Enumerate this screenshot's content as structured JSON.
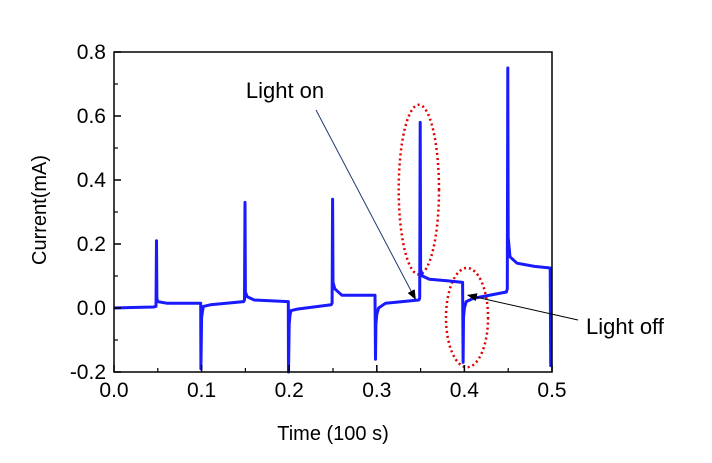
{
  "chart_data": {
    "type": "line",
    "xlabel": "Time (100 s)",
    "ylabel": "Current(mA)",
    "xlim": [
      0.0,
      0.5
    ],
    "ylim": [
      -0.2,
      0.8
    ],
    "xticks": [
      "0.0",
      "0.1",
      "0.2",
      "0.3",
      "0.4",
      "0.5"
    ],
    "yticks": [
      "-0.2",
      "0.0",
      "0.2",
      "0.4",
      "0.6",
      "0.8"
    ],
    "grid": false,
    "legend": "none",
    "series": [
      {
        "color": "#1a1aff",
        "x": [
          0.0,
          0.045,
          0.048,
          0.0485,
          0.049,
          0.05,
          0.06,
          0.099,
          0.0992,
          0.1,
          0.101,
          0.102,
          0.11,
          0.148,
          0.149,
          0.1495,
          0.15,
          0.152,
          0.16,
          0.199,
          0.1992,
          0.2,
          0.201,
          0.202,
          0.21,
          0.248,
          0.249,
          0.2495,
          0.25,
          0.252,
          0.26,
          0.298,
          0.2985,
          0.299,
          0.3,
          0.302,
          0.31,
          0.348,
          0.349,
          0.3495,
          0.35,
          0.352,
          0.36,
          0.38,
          0.398,
          0.3985,
          0.399,
          0.4,
          0.402,
          0.41,
          0.448,
          0.449,
          0.4495,
          0.45,
          0.452,
          0.46,
          0.48,
          0.498,
          0.4985,
          0.499
        ],
        "y": [
          0.0,
          0.003,
          0.005,
          0.21,
          0.03,
          0.02,
          0.015,
          0.015,
          -0.19,
          -0.03,
          -0.01,
          0.005,
          0.01,
          0.02,
          0.025,
          0.33,
          0.05,
          0.035,
          0.025,
          0.02,
          -0.2,
          -0.05,
          -0.02,
          -0.008,
          -0.003,
          0.01,
          0.015,
          0.34,
          0.08,
          0.06,
          0.04,
          0.04,
          -0.16,
          -0.05,
          -0.02,
          0.0,
          0.015,
          0.025,
          0.03,
          0.58,
          0.12,
          0.1,
          0.09,
          0.085,
          0.08,
          -0.17,
          -0.03,
          0.0,
          0.02,
          0.03,
          0.05,
          0.06,
          0.75,
          0.22,
          0.16,
          0.14,
          0.13,
          0.125,
          -0.18,
          -0.18
        ]
      }
    ],
    "annotations": [
      {
        "text": "Light on",
        "x": 0.344,
        "y": 0.028
      },
      {
        "text": "Light off",
        "x": 0.404,
        "y": 0.04
      }
    ],
    "highlights": [
      {
        "cx": 0.348,
        "cy": 0.37,
        "rx": 0.023,
        "ry": 0.265,
        "color": "#e00000"
      },
      {
        "cx": 0.403,
        "cy": -0.03,
        "rx": 0.024,
        "ry": 0.155,
        "color": "#e00000"
      }
    ]
  }
}
